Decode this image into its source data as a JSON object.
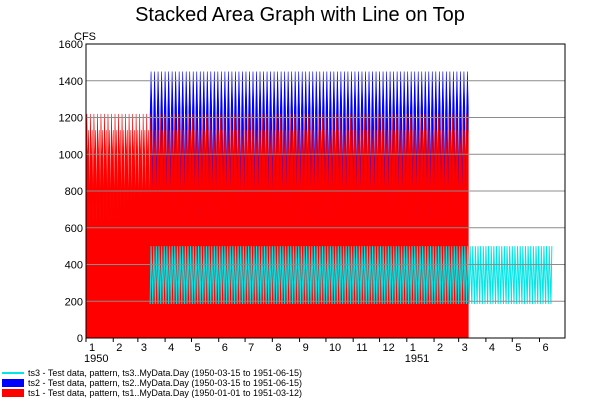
{
  "chart_data": {
    "type": "area",
    "title": "Stacked Area Graph with Line on Top",
    "ylabel": "CFS",
    "xlabel": "",
    "ylim": [
      0,
      1600
    ],
    "yticks": [
      0,
      200,
      400,
      600,
      800,
      1000,
      1200,
      1400,
      1600
    ],
    "x_range": [
      "1950-01-01",
      "1951-06-30"
    ],
    "month_ticks": [
      "1",
      "2",
      "3",
      "4",
      "5",
      "6",
      "7",
      "8",
      "9",
      "10",
      "11",
      "12",
      "1",
      "2",
      "3",
      "4",
      "5",
      "6"
    ],
    "year_labels": [
      {
        "label": "1950",
        "date": "1950-01-01"
      },
      {
        "label": "1951",
        "date": "1951-01-01"
      }
    ],
    "grid": true,
    "legend_position": "bottom-left",
    "series": [
      {
        "name": "ts3 - Test data, pattern, ts3..MyData.Day (1950-03-15 to 1951-06-15)",
        "style": "line",
        "color": "#00e5e5",
        "start": "1950-03-15",
        "end": "1951-06-15",
        "pattern_min": 185,
        "pattern_max": 500,
        "pattern_period_days": 3
      },
      {
        "name": "ts2 - Test data, pattern, ts2..MyData.Day (1950-03-15 to 1951-06-15)",
        "style": "stacked-area",
        "color": "#0000ff",
        "start": "1950-03-15",
        "end": "1951-06-15",
        "pattern_min": 0,
        "pattern_max": 820,
        "pattern_period_days": 4
      },
      {
        "name": "ts1 - Test data, pattern, ts1..MyData.Day (1950-01-01 to 1951-03-12)",
        "style": "stacked-area",
        "color": "#ff0000",
        "start": "1950-01-01",
        "end": "1951-03-12",
        "pattern_min": 630,
        "pattern_max": 1220,
        "pattern_period_days": 4
      }
    ]
  }
}
